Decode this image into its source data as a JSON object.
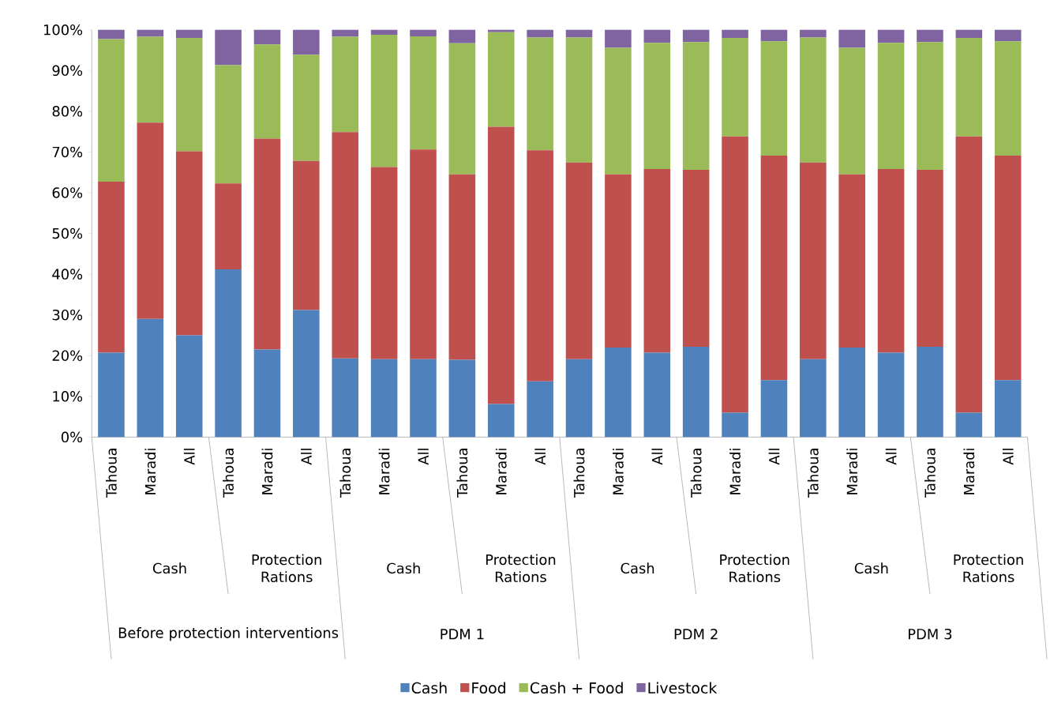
{
  "chart_data": {
    "type": "bar",
    "stacked": true,
    "legend": "bottom",
    "categories": [
      "Tahoua",
      "Maradi",
      "All",
      "Tahoua",
      "Maradi",
      "All",
      "Tahoua",
      "Maradi",
      "All",
      "Tahoua",
      "Maradi",
      "All",
      "Tahoua",
      "Maradi",
      "All",
      "Tahoua",
      "Maradi",
      "All",
      "Tahoua",
      "Maradi",
      "All",
      "Tahoua",
      "Maradi",
      "All"
    ],
    "series": [
      {
        "name": "Cash",
        "color": "#4f81bd",
        "values": [
          20.7,
          29,
          25,
          41.2,
          21.5,
          31.2,
          19.3,
          19.1,
          19.1,
          19,
          8.1,
          13.7,
          19.1,
          22,
          20.7,
          22.2,
          6,
          14,
          19.1,
          22,
          20.7,
          22.2,
          6,
          14
        ]
      },
      {
        "name": "Food",
        "color": "#c0504d",
        "values": [
          42,
          48.2,
          45.2,
          21.1,
          51.8,
          36.6,
          55.6,
          47.2,
          51.5,
          45.5,
          68.1,
          56.7,
          48.3,
          42.5,
          45.1,
          43.4,
          67.8,
          55.1,
          48.3,
          42.5,
          45.1,
          43.4,
          67.8,
          55.1
        ]
      },
      {
        "name": "Cash + Food",
        "color": "#9bbb59",
        "values": [
          35,
          21.1,
          27.8,
          29,
          23.1,
          26.1,
          23.4,
          32.5,
          27.8,
          32.2,
          23.2,
          27.7,
          30.7,
          31.1,
          31,
          31.4,
          24.2,
          28.1,
          30.7,
          31.1,
          31,
          31.4,
          24.2,
          28.1
        ]
      },
      {
        "name": "Livestock",
        "color": "#8064a2",
        "values": [
          2.3,
          1.7,
          2,
          8.7,
          3.6,
          6.1,
          1.7,
          1.2,
          1.6,
          3.3,
          0.6,
          1.9,
          1.9,
          4.4,
          3.2,
          3,
          2,
          2.8,
          1.9,
          4.4,
          3.2,
          3,
          2,
          2.8
        ]
      }
    ],
    "ylim": [
      0,
      100
    ],
    "yticks": [
      {
        "value": 0,
        "label": "0%"
      },
      {
        "value": 10,
        "label": "10%"
      },
      {
        "value": 20,
        "label": "20%"
      },
      {
        "value": 30,
        "label": "30%"
      },
      {
        "value": 40,
        "label": "40%"
      },
      {
        "value": 50,
        "label": "50%"
      },
      {
        "value": 60,
        "label": "60%"
      },
      {
        "value": 70,
        "label": "70%"
      },
      {
        "value": 80,
        "label": "80%"
      },
      {
        "value": 90,
        "label": "90%"
      },
      {
        "value": 100,
        "label": "100%"
      }
    ],
    "annotations": [
      "Cash",
      "Protection Rations",
      "Cash",
      "Protection Rations",
      "Cash",
      "Protection Rations",
      "Cash",
      "Protection Rations",
      "Before protection interventions",
      "PDM 1",
      "PDM 2",
      "PDM 3"
    ]
  }
}
